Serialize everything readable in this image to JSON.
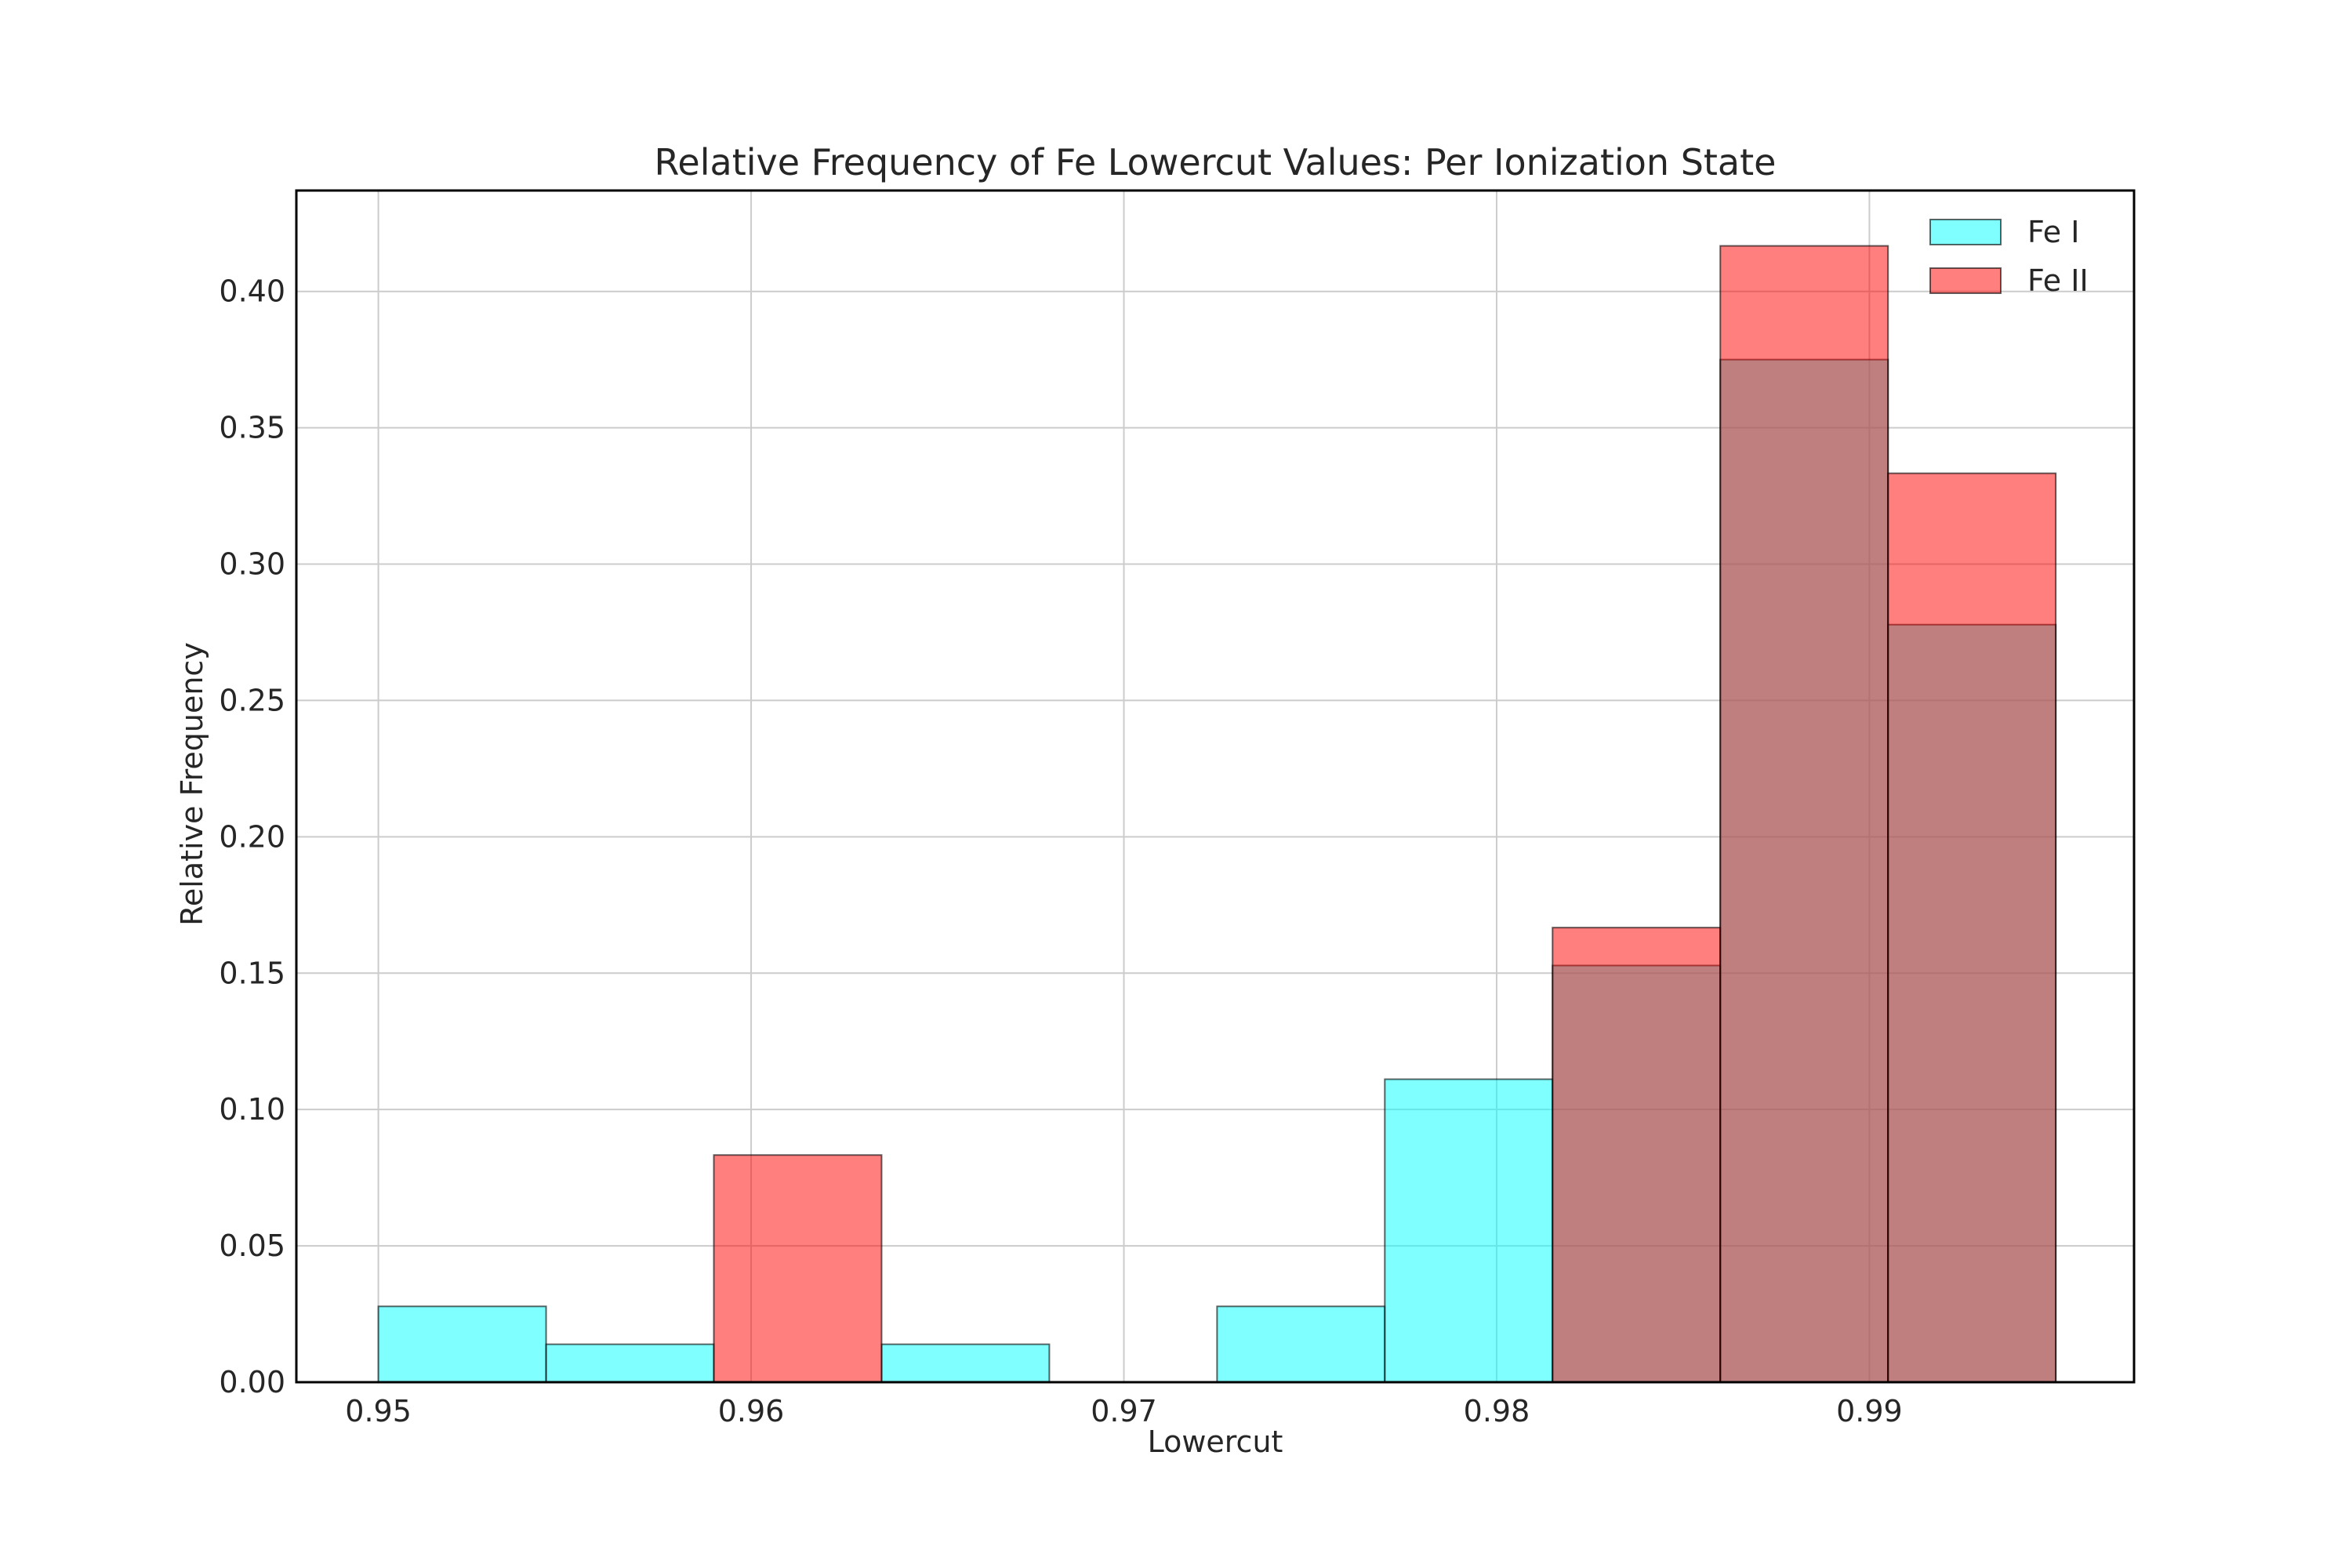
{
  "chart_data": {
    "type": "bar",
    "subtype": "overlaid-histogram",
    "title": "Relative Frequency of Fe Lowercut Values: Per Ionization State",
    "xlabel": "Lowercut",
    "ylabel": "Relative Frequency",
    "xlim": [
      0.9478,
      0.9971
    ],
    "ylim": [
      0,
      0.437
    ],
    "xticks": [
      0.95,
      0.96,
      0.97,
      0.98,
      0.99
    ],
    "xtick_labels": [
      "0.95",
      "0.96",
      "0.97",
      "0.98",
      "0.99"
    ],
    "yticks": [
      0.0,
      0.05,
      0.1,
      0.15,
      0.2,
      0.25,
      0.3,
      0.35,
      0.4
    ],
    "ytick_labels": [
      "0.00",
      "0.05",
      "0.10",
      "0.15",
      "0.20",
      "0.25",
      "0.30",
      "0.35",
      "0.40"
    ],
    "grid": true,
    "legend_position": "top-right",
    "bin_edges": [
      0.95,
      0.9545,
      0.959,
      0.9635,
      0.968,
      0.9725,
      0.977,
      0.9815,
      0.986,
      0.9905,
      0.995
    ],
    "series": [
      {
        "name": "Fe I",
        "color": "#00ffff",
        "alpha": 0.5,
        "values": [
          0.0278,
          0.0139,
          0.0,
          0.0139,
          0.0,
          0.0278,
          0.1111,
          0.1528,
          0.375,
          0.2778
        ]
      },
      {
        "name": "Fe II",
        "color": "#ff0000",
        "alpha": 0.5,
        "values": [
          0.0,
          0.0,
          0.0833,
          0.0,
          0.0,
          0.0,
          0.0,
          0.1667,
          0.4167,
          0.3333
        ]
      }
    ]
  }
}
